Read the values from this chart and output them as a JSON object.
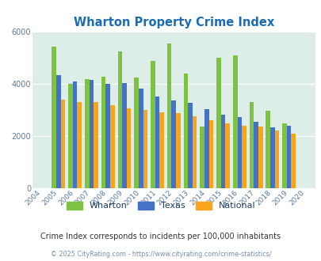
{
  "title": "Wharton Property Crime Index",
  "years": [
    2004,
    2005,
    2006,
    2007,
    2008,
    2009,
    2010,
    2011,
    2012,
    2013,
    2014,
    2015,
    2016,
    2017,
    2018,
    2019,
    2020
  ],
  "wharton": [
    null,
    5400,
    3980,
    4180,
    4250,
    5230,
    4230,
    4870,
    5530,
    4380,
    2360,
    5000,
    5080,
    3280,
    2960,
    2460,
    null
  ],
  "texas": [
    null,
    4320,
    4080,
    4130,
    3980,
    4020,
    3800,
    3500,
    3340,
    3260,
    3020,
    2800,
    2720,
    2520,
    2330,
    2370,
    null
  ],
  "national": [
    null,
    3380,
    3300,
    3290,
    3160,
    3050,
    2980,
    2900,
    2880,
    2740,
    2600,
    2480,
    2380,
    2340,
    2200,
    2080,
    null
  ],
  "wharton_color": "#7dc242",
  "texas_color": "#4472c4",
  "national_color": "#faa41a",
  "bg_color": "#ddeee8",
  "ylim": [
    0,
    6000
  ],
  "yticks": [
    0,
    2000,
    4000,
    6000
  ],
  "subtitle": "Crime Index corresponds to incidents per 100,000 inhabitants",
  "footer": "© 2025 CityRating.com - https://www.cityrating.com/crime-statistics/",
  "title_color": "#1b6cb5",
  "subtitle_color": "#333333",
  "footer_color": "#7a8fa6",
  "legend_label_color": "#1a3a5c"
}
